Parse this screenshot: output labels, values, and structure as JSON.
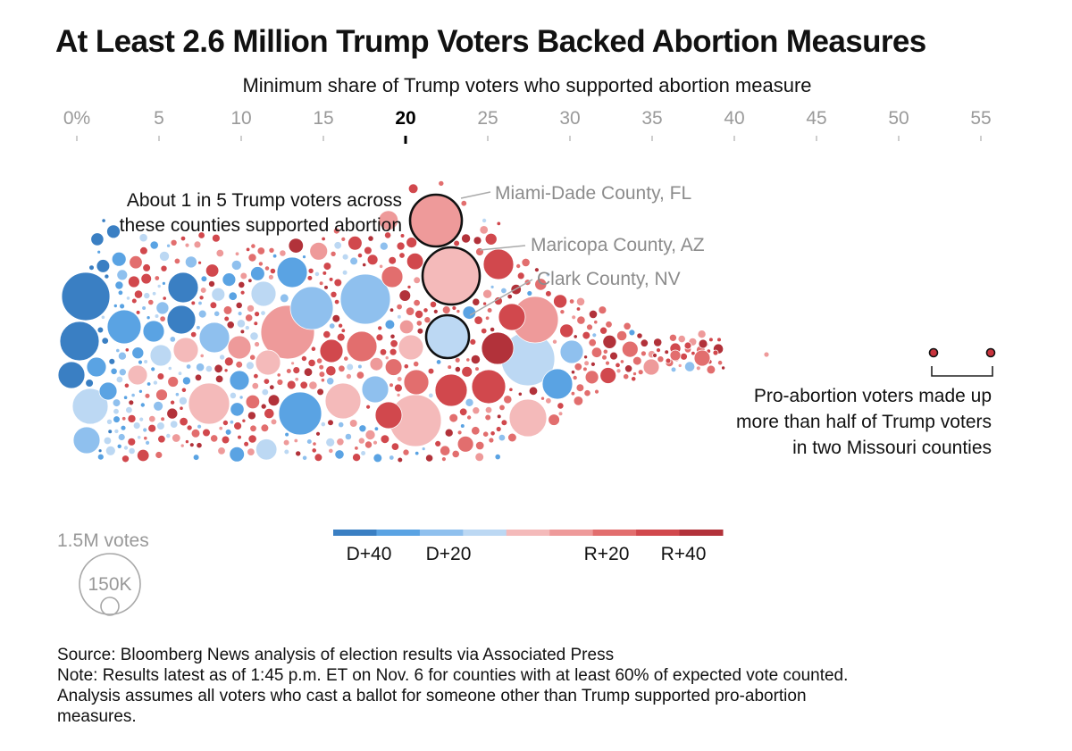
{
  "title": "At Least 2.6 Million Trump Voters Backed Abortion Measures",
  "subtitle": "Minimum share of Trump voters who supported abortion measure",
  "chart_data": {
    "type": "beeswarm",
    "title": "At Least 2.6 Million Trump Voters Backed Abortion Measures",
    "xlabel": "Minimum share of Trump voters who supported abortion measure",
    "x_ticks": [
      "0%",
      "5",
      "10",
      "15",
      "20",
      "25",
      "30",
      "35",
      "40",
      "45",
      "50",
      "55"
    ],
    "x_tick_values": [
      0,
      5,
      10,
      15,
      20,
      25,
      30,
      35,
      40,
      45,
      50,
      55
    ],
    "highlight_tick": 20,
    "xlim": [
      0,
      56
    ],
    "size_encoding": "votes cast",
    "color_encoding": "county margin (D+40 to R+40)",
    "legend": {
      "labels": [
        "D+40",
        "D+20",
        "R+20",
        "R+40"
      ],
      "colors": [
        "#3a7fc3",
        "#5aa3e3",
        "#8fc0ee",
        "#bcd8f3",
        "#f4baba",
        "#ee9a9a",
        "#e26e6e",
        "#d1484d",
        "#b2323a"
      ]
    },
    "size_legend": {
      "large": "1.5M votes",
      "small": "150K"
    },
    "highlighted_counties": [
      {
        "name": "Miami-Dade County, FL",
        "x": 22,
        "margin": "R+20"
      },
      {
        "name": "Maricopa County, AZ",
        "x": 22.8,
        "margin": "R+10"
      },
      {
        "name": "Clark County, NV",
        "x": 22.8,
        "margin": "D+10"
      }
    ],
    "missouri_counties": [
      52.5,
      56.2
    ],
    "annotations": [
      "About 1 in 5 Trump voters across",
      "these counties supported abortion",
      "Pro-abortion voters made up",
      "more than half of Trump voters",
      "in two Missouri counties"
    ]
  },
  "notes": {
    "source": "Source: Bloomberg News analysis of election results via Associated Press",
    "note": "Note: Results latest as of 1:45 p.m. ET on Nov. 6 for counties with at least 60% of expected vote counted.",
    "note2": "Analysis assumes all voters who cast a ballot for someone other than Trump supported pro-abortion",
    "note3": "measures."
  }
}
